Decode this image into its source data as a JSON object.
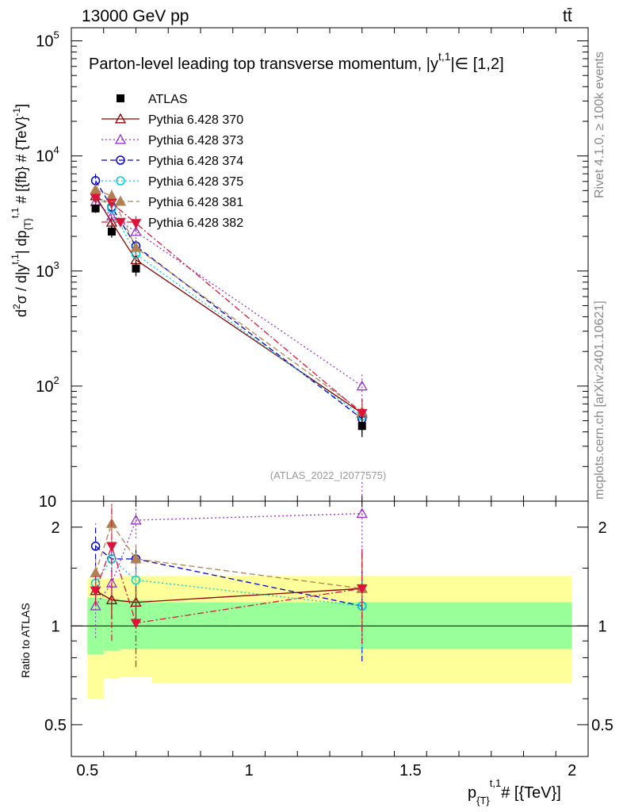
{
  "header": {
    "energy_label": "13000 GeV pp",
    "process_label": "tt̄"
  },
  "side_text": {
    "rivet_label": "Rivet 4.1.0, ≥ 100k events",
    "mcplots_label": "mcplots.cern.ch [arXiv:2401.10621]"
  },
  "chart_data": {
    "type": "scatter",
    "title": "Parton-level leading top transverse momentum, |y^{t,1}| ∈ [1,2]",
    "title_main": "Parton-level leading top transverse momentum, |y",
    "title_sup": "t,1",
    "title_tail": "|∈ [1,2]",
    "analysis_label": "(ATLAS_2022_I2077575)",
    "xlabel": "p_{T}^{t,1} # [{TeV}]",
    "xlabel_main": "p",
    "xlabel_sub": "{T}",
    "xlabel_sup": "t,1",
    "xlabel_tail": "# [{TeV}]",
    "ylabel": "d²σ / d|y^{t,1}| dp_{T}^{t,1} # [{fb} # {TeV}^{-1}]",
    "ylabel_parts": [
      "d",
      "2",
      "σ / d|y",
      "t,1",
      "| dp",
      "{T}",
      "t,1",
      " # [{fb} # {TeV}",
      "-1",
      "]"
    ],
    "ratio_ylabel": "Ratio to ATLAS",
    "xlim": [
      0.45,
      2.05
    ],
    "ylim": [
      10,
      130000
    ],
    "yscale": "log",
    "ratio_ylim": [
      0.4,
      2.4
    ],
    "ratio_yscale": "log",
    "x_ticks": [
      "0.5",
      "1",
      "1.5",
      "2"
    ],
    "x_tick_values": [
      0.5,
      1.0,
      1.5,
      2.0
    ],
    "y_tick_labels": [
      {
        "base": "10",
        "exp": "5",
        "value": 100000
      },
      {
        "base": "10",
        "exp": "4",
        "value": 10000
      },
      {
        "base": "10",
        "exp": "3",
        "value": 1000
      },
      {
        "base": "10",
        "exp": "2",
        "value": 100
      },
      {
        "base": "10",
        "exp": "",
        "value": 10
      }
    ],
    "ratio_y_ticks": [
      "2",
      "1",
      "0.5"
    ],
    "ratio_y_tick_values": [
      2,
      1,
      0.5
    ],
    "ratio_bands": {
      "bins": [
        [
          0.5,
          0.55
        ],
        [
          0.55,
          0.6
        ],
        [
          0.6,
          0.7
        ],
        [
          0.7,
          2.0
        ]
      ],
      "inner": [
        [
          0.82,
          1.22
        ],
        [
          0.84,
          1.21
        ],
        [
          0.85,
          1.2
        ],
        [
          0.85,
          1.18
        ]
      ],
      "outer": [
        [
          0.6,
          1.4
        ],
        [
          0.69,
          1.4
        ],
        [
          0.7,
          1.42
        ],
        [
          0.67,
          1.42
        ]
      ],
      "inner_color": "#99ff99",
      "outer_color": "#ffff99"
    },
    "data": {
      "name": "ATLAS",
      "color": "#000000",
      "x": [
        0.525,
        0.575,
        0.65,
        1.35
      ],
      "y": [
        3500,
        2200,
        1050,
        45
      ],
      "yerr": [
        [
          3200,
          3800
        ],
        [
          1950,
          2450
        ],
        [
          900,
          1200
        ],
        [
          36,
          54
        ]
      ]
    },
    "series": [
      {
        "name": "Pythia 6.428 370",
        "color": "#8b0000",
        "marker": "triangle-open",
        "dash": "solid",
        "x": [
          0.525,
          0.575,
          0.65,
          1.35
        ],
        "y": [
          4500,
          2650,
          1250,
          58
        ],
        "yerr": [
          [
            4100,
            5000
          ],
          [
            2300,
            3000
          ],
          [
            1050,
            1450
          ],
          [
            42,
            78
          ]
        ]
      },
      {
        "name": "Pythia 6.428 373",
        "color": "#9932cc",
        "marker": "triangle-open",
        "dash": "dotted",
        "x": [
          0.525,
          0.575,
          0.65,
          1.35
        ],
        "y": [
          4000,
          3000,
          2200,
          100
        ],
        "yerr": [
          [
            3500,
            4500
          ],
          [
            2600,
            3400
          ],
          [
            1900,
            2500
          ],
          [
            70,
            130
          ]
        ]
      },
      {
        "name": "Pythia 6.428 374",
        "color": "#0000cd",
        "marker": "circle-open",
        "dash": "dashed",
        "x": [
          0.525,
          0.575,
          0.65,
          1.35
        ],
        "y": [
          6100,
          3600,
          1650,
          52
        ],
        "yerr": [
          [
            5300,
            7000
          ],
          [
            3200,
            4000
          ],
          [
            1450,
            1850
          ],
          [
            40,
            66
          ]
        ]
      },
      {
        "name": "Pythia 6.428 375",
        "color": "#00ced1",
        "marker": "circle-open",
        "dash": "dotted",
        "x": [
          0.525,
          0.575,
          0.65,
          1.35
        ],
        "y": [
          4700,
          3500,
          1400,
          55
        ],
        "yerr": [
          [
            4300,
            5100
          ],
          [
            3200,
            3800
          ],
          [
            1250,
            1550
          ],
          [
            44,
            66
          ]
        ]
      },
      {
        "name": "Pythia 6.428 381",
        "color": "#b08050",
        "marker": "triangle-filled",
        "dash": "dashed",
        "x": [
          0.525,
          0.575,
          0.65,
          1.35
        ],
        "y": [
          5100,
          4500,
          1600,
          60
        ],
        "yerr": [
          [
            4600,
            5600
          ],
          [
            3900,
            5100
          ],
          [
            1400,
            1800
          ],
          [
            46,
            74
          ]
        ]
      },
      {
        "name": "Pythia 6.428 382",
        "color": "#dc143c",
        "marker": "triangle-down-filled",
        "dash": "dashdot",
        "x": [
          0.525,
          0.575,
          0.65,
          1.35
        ],
        "y": [
          4300,
          3900,
          2600,
          58
        ],
        "yerr": [
          [
            3900,
            4700
          ],
          [
            3400,
            4400
          ],
          [
            2200,
            3000
          ],
          [
            44,
            72
          ]
        ]
      }
    ],
    "ratio_series": [
      {
        "name": "Pythia 6.428 370",
        "y": [
          1.28,
          1.2,
          1.18,
          1.3
        ],
        "yerr": [
          [
            1.18,
            1.38
          ],
          [
            1.05,
            1.35
          ],
          [
            1.02,
            1.34
          ],
          [
            0.93,
            1.68
          ]
        ]
      },
      {
        "name": "Pythia 6.428 373",
        "y": [
          1.15,
          1.35,
          2.1,
          2.2
        ],
        "yerr": [
          [
            0.92,
            1.4
          ],
          [
            1.2,
            1.5
          ],
          [
            1.85,
            2.35
          ],
          [
            1.6,
            2.8
          ]
        ]
      },
      {
        "name": "Pythia 6.428 374",
        "y": [
          1.75,
          1.6,
          1.6,
          1.15
        ],
        "yerr": [
          [
            1.5,
            2.05
          ],
          [
            1.45,
            1.75
          ],
          [
            1.45,
            1.75
          ],
          [
            0.78,
            1.52
          ]
        ]
      },
      {
        "name": "Pythia 6.428 375",
        "y": [
          1.35,
          1.6,
          1.38,
          1.15
        ],
        "yerr": [
          [
            1.22,
            1.5
          ],
          [
            1.48,
            1.72
          ],
          [
            1.25,
            1.5
          ],
          [
            0.82,
            1.48
          ]
        ]
      },
      {
        "name": "Pythia 6.428 381",
        "y": [
          1.45,
          2.05,
          1.6,
          1.3
        ],
        "yerr": [
          [
            1.3,
            1.6
          ],
          [
            1.8,
            2.35
          ],
          [
            1.42,
            1.78
          ],
          [
            0.95,
            1.65
          ]
        ]
      },
      {
        "name": "Pythia 6.428 382",
        "y": [
          1.28,
          1.75,
          1.02,
          1.3
        ],
        "yerr": [
          [
            1.15,
            1.42
          ],
          [
            0.9,
            2.35
          ],
          [
            0.75,
            1.3
          ],
          [
            0.88,
            1.72
          ]
        ]
      }
    ]
  }
}
